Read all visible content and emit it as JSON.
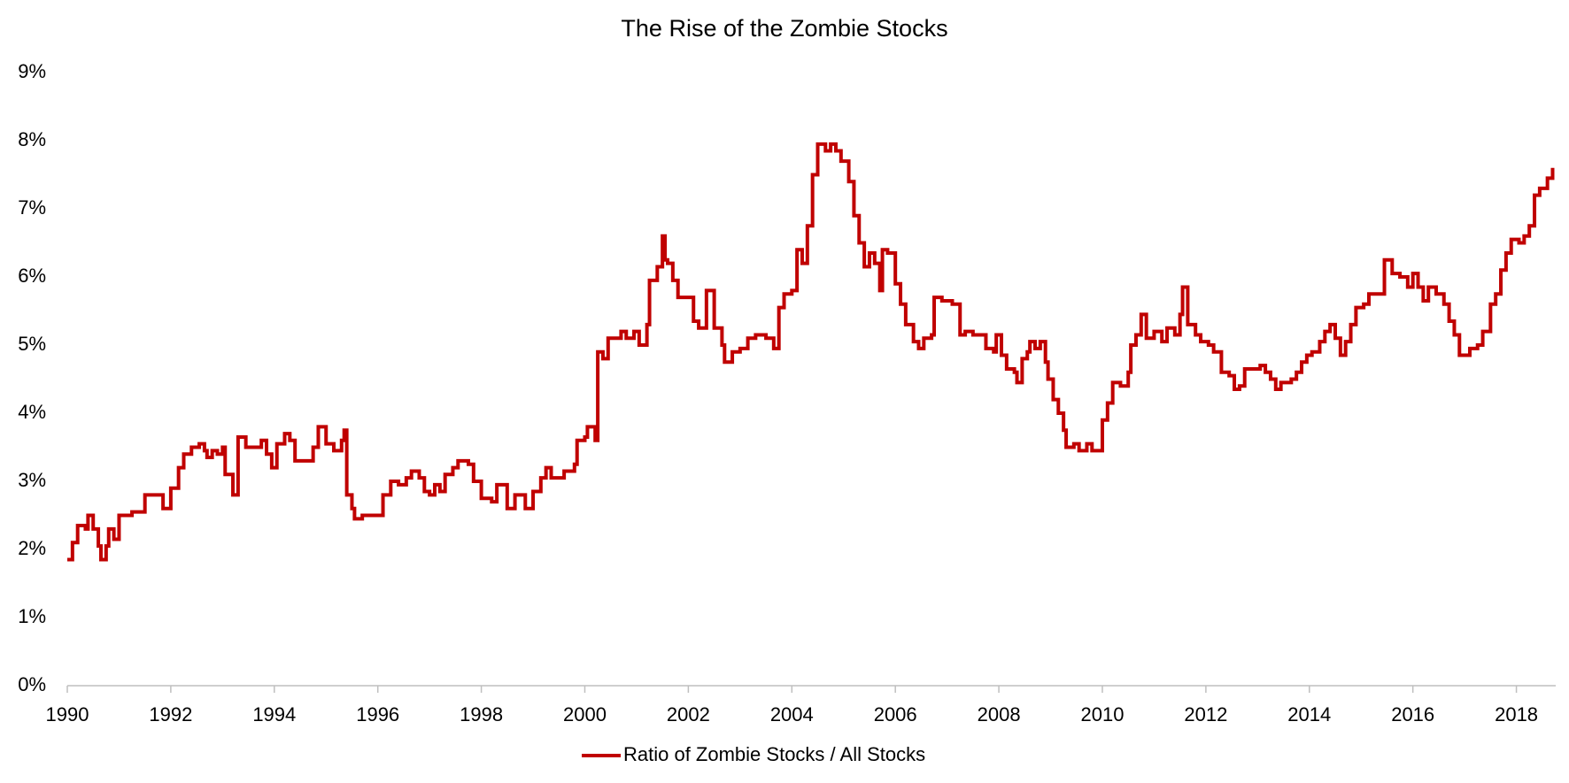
{
  "chart_data": {
    "type": "line",
    "title": "The Rise of the Zombie Stocks",
    "step": true,
    "x": [
      1990.0,
      1990.1,
      1990.2,
      1990.35,
      1990.4,
      1990.5,
      1990.6,
      1990.65,
      1990.75,
      1990.8,
      1990.9,
      1991.0,
      1991.25,
      1991.5,
      1991.8,
      1991.85,
      1992.0,
      1992.15,
      1992.25,
      1992.4,
      1992.55,
      1992.65,
      1992.7,
      1992.8,
      1992.9,
      1993.0,
      1993.05,
      1993.2,
      1993.3,
      1993.45,
      1993.6,
      1993.75,
      1993.85,
      1993.95,
      1994.05,
      1994.2,
      1994.3,
      1994.4,
      1994.6,
      1994.75,
      1994.85,
      1995.0,
      1995.15,
      1995.3,
      1995.35,
      1995.4,
      1995.5,
      1995.55,
      1995.7,
      1996.0,
      1996.1,
      1996.25,
      1996.4,
      1996.55,
      1996.65,
      1996.8,
      1996.9,
      1997.0,
      1997.1,
      1997.2,
      1997.3,
      1997.45,
      1997.55,
      1997.75,
      1997.85,
      1998.0,
      1998.2,
      1998.3,
      1998.5,
      1998.65,
      1998.85,
      1999.0,
      1999.15,
      1999.25,
      1999.35,
      1999.6,
      1999.8,
      1999.85,
      2000.0,
      2000.05,
      2000.2,
      2000.25,
      2000.35,
      2000.45,
      2000.6,
      2000.7,
      2000.8,
      2000.95,
      2001.05,
      2001.2,
      2001.25,
      2001.4,
      2001.5,
      2001.55,
      2001.6,
      2001.7,
      2001.8,
      2001.95,
      2002.1,
      2002.2,
      2002.35,
      2002.5,
      2002.65,
      2002.7,
      2002.85,
      2003.0,
      2003.15,
      2003.3,
      2003.5,
      2003.65,
      2003.75,
      2003.85,
      2004.0,
      2004.1,
      2004.2,
      2004.3,
      2004.4,
      2004.5,
      2004.65,
      2004.75,
      2004.85,
      2004.95,
      2005.1,
      2005.2,
      2005.3,
      2005.4,
      2005.5,
      2005.6,
      2005.7,
      2005.75,
      2005.85,
      2006.0,
      2006.1,
      2006.2,
      2006.35,
      2006.45,
      2006.55,
      2006.7,
      2006.75,
      2006.9,
      2007.1,
      2007.25,
      2007.35,
      2007.5,
      2007.65,
      2007.75,
      2007.9,
      2007.95,
      2008.05,
      2008.15,
      2008.3,
      2008.35,
      2008.45,
      2008.55,
      2008.6,
      2008.7,
      2008.8,
      2008.9,
      2008.95,
      2009.05,
      2009.15,
      2009.25,
      2009.3,
      2009.45,
      2009.55,
      2009.7,
      2009.8,
      2010.0,
      2010.1,
      2010.2,
      2010.35,
      2010.5,
      2010.55,
      2010.65,
      2010.75,
      2010.85,
      2011.0,
      2011.15,
      2011.25,
      2011.4,
      2011.5,
      2011.55,
      2011.65,
      2011.8,
      2011.9,
      2012.05,
      2012.15,
      2012.3,
      2012.45,
      2012.55,
      2012.65,
      2012.75,
      2012.9,
      2013.05,
      2013.15,
      2013.25,
      2013.35,
      2013.45,
      2013.65,
      2013.75,
      2013.85,
      2013.95,
      2014.05,
      2014.2,
      2014.3,
      2014.4,
      2014.5,
      2014.6,
      2014.7,
      2014.8,
      2014.9,
      2015.05,
      2015.15,
      2015.45,
      2015.6,
      2015.75,
      2015.9,
      2016.0,
      2016.1,
      2016.2,
      2016.3,
      2016.45,
      2016.6,
      2016.7,
      2016.8,
      2016.9,
      2017.1,
      2017.25,
      2017.35,
      2017.5,
      2017.6,
      2017.7,
      2017.8,
      2017.9,
      2018.05,
      2018.15,
      2018.25,
      2018.35,
      2018.45,
      2018.6,
      2018.7
    ],
    "series": [
      {
        "name": "Ratio of Zombie Stocks / All Stocks",
        "color": "#c00000",
        "values": [
          1.85,
          2.1,
          2.35,
          2.3,
          2.5,
          2.3,
          2.05,
          1.85,
          2.05,
          2.3,
          2.15,
          2.5,
          2.55,
          2.8,
          2.8,
          2.6,
          2.9,
          3.2,
          3.4,
          3.5,
          3.55,
          3.45,
          3.35,
          3.45,
          3.4,
          3.5,
          3.1,
          2.8,
          3.65,
          3.5,
          3.5,
          3.6,
          3.4,
          3.2,
          3.55,
          3.7,
          3.6,
          3.3,
          3.3,
          3.5,
          3.8,
          3.55,
          3.45,
          3.6,
          3.75,
          2.8,
          2.6,
          2.45,
          2.5,
          2.5,
          2.8,
          3.0,
          2.95,
          3.05,
          3.15,
          3.05,
          2.85,
          2.8,
          2.95,
          2.85,
          3.1,
          3.2,
          3.3,
          3.25,
          3.0,
          2.75,
          2.7,
          2.95,
          2.6,
          2.8,
          2.6,
          2.85,
          3.05,
          3.2,
          3.05,
          3.15,
          3.25,
          3.6,
          3.65,
          3.8,
          3.6,
          4.9,
          4.8,
          5.1,
          5.1,
          5.2,
          5.1,
          5.2,
          5.0,
          5.3,
          5.95,
          6.15,
          6.6,
          6.25,
          6.2,
          5.95,
          5.7,
          5.7,
          5.35,
          5.25,
          5.8,
          5.25,
          5.0,
          4.75,
          4.9,
          4.95,
          5.1,
          5.15,
          5.1,
          4.95,
          5.55,
          5.75,
          5.8,
          6.4,
          6.2,
          6.75,
          7.5,
          7.95,
          7.85,
          7.95,
          7.85,
          7.7,
          7.4,
          6.9,
          6.5,
          6.15,
          6.35,
          6.2,
          5.8,
          6.4,
          6.35,
          5.9,
          5.6,
          5.3,
          5.05,
          4.95,
          5.1,
          5.15,
          5.7,
          5.65,
          5.6,
          5.15,
          5.2,
          5.15,
          5.15,
          4.95,
          4.9,
          5.15,
          4.85,
          4.65,
          4.6,
          4.45,
          4.8,
          4.9,
          5.05,
          4.95,
          5.05,
          4.75,
          4.5,
          4.2,
          4.0,
          3.75,
          3.5,
          3.55,
          3.45,
          3.55,
          3.45,
          3.9,
          4.15,
          4.45,
          4.4,
          4.6,
          5.0,
          5.15,
          5.45,
          5.1,
          5.2,
          5.05,
          5.25,
          5.15,
          5.45,
          5.85,
          5.3,
          5.15,
          5.05,
          5.0,
          4.9,
          4.6,
          4.55,
          4.35,
          4.4,
          4.65,
          4.65,
          4.7,
          4.6,
          4.5,
          4.35,
          4.45,
          4.5,
          4.6,
          4.75,
          4.85,
          4.9,
          5.05,
          5.2,
          5.3,
          5.1,
          4.85,
          5.05,
          5.3,
          5.55,
          5.6,
          5.75,
          6.25,
          6.05,
          6.0,
          5.85,
          6.05,
          5.85,
          5.65,
          5.85,
          5.75,
          5.6,
          5.35,
          5.15,
          4.85,
          4.95,
          5.0,
          5.2,
          5.6,
          5.75,
          6.1,
          6.35,
          6.55,
          6.5,
          6.6,
          6.75,
          7.2,
          7.3,
          7.45,
          7.6
        ]
      }
    ],
    "xlim": [
      1990,
      2018.76
    ],
    "xticks": [
      1990,
      1992,
      1994,
      1996,
      1998,
      2000,
      2002,
      2004,
      2006,
      2008,
      2010,
      2012,
      2014,
      2016,
      2018
    ],
    "ylim": [
      0,
      9
    ],
    "yticks": [
      {
        "value": 0,
        "label": "0%"
      },
      {
        "value": 1,
        "label": "1%"
      },
      {
        "value": 2,
        "label": "2%"
      },
      {
        "value": 3,
        "label": "3%"
      },
      {
        "value": 4,
        "label": "4%"
      },
      {
        "value": 5,
        "label": "5%"
      },
      {
        "value": 6,
        "label": "6%"
      },
      {
        "value": 7,
        "label": "7%"
      },
      {
        "value": 8,
        "label": "8%"
      },
      {
        "value": 9,
        "label": "9%"
      }
    ],
    "grid": false,
    "legend": "bottom"
  }
}
